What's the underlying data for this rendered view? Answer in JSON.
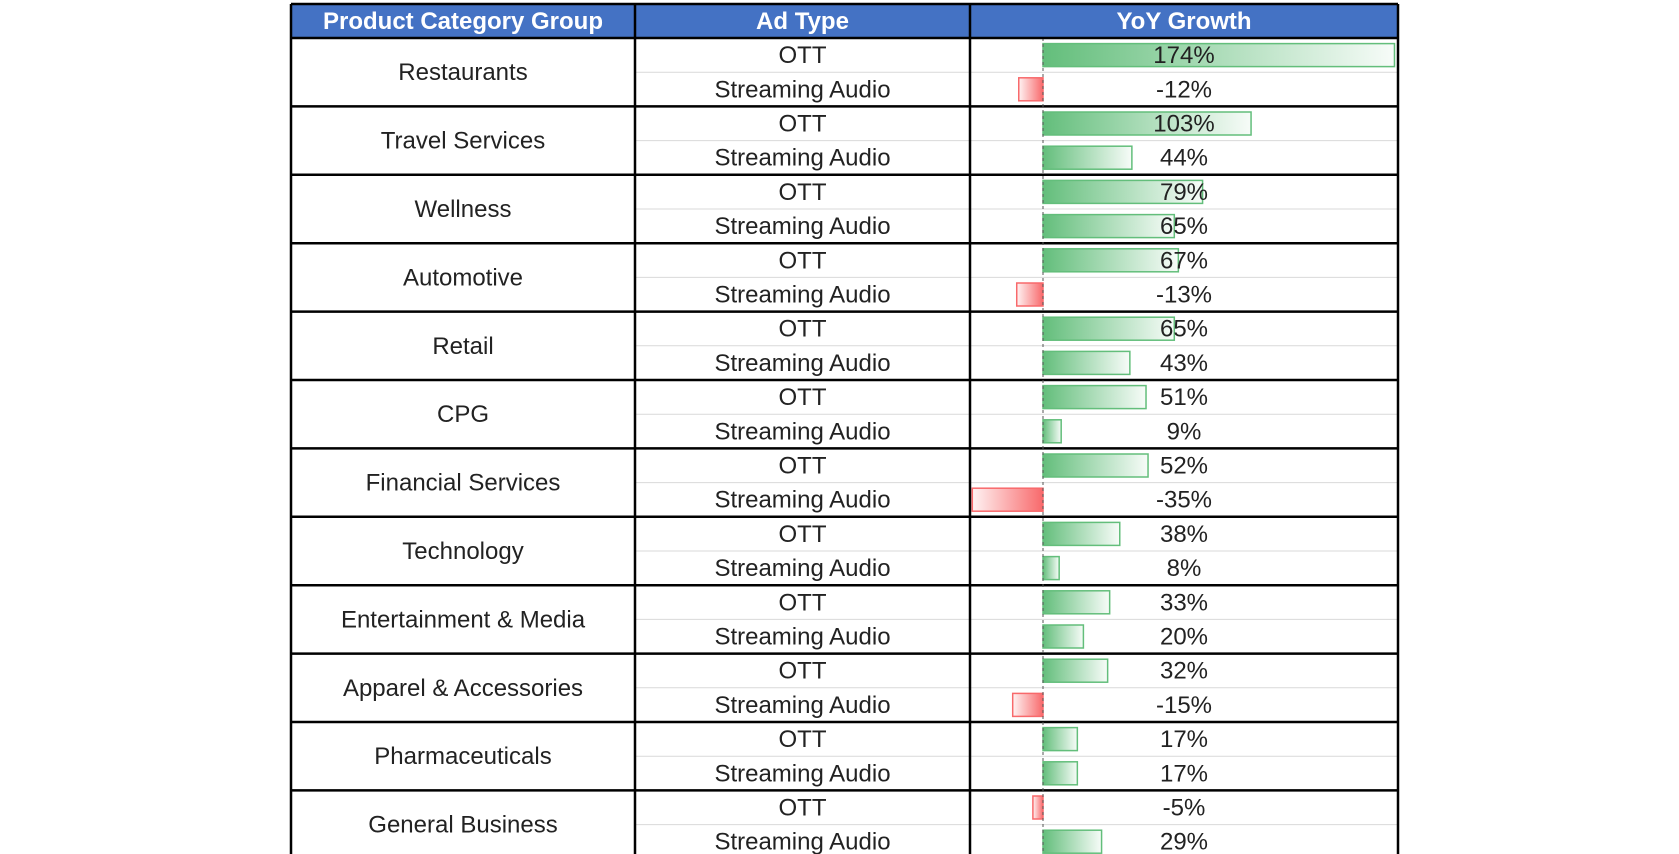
{
  "colors": {
    "header_bg": "#4472C4",
    "header_text": "#FFFFFF",
    "positive_bar": "#63BE7B",
    "negative_bar": "#F8696B",
    "border": "#000000"
  },
  "chart_data": {
    "type": "table",
    "columns": [
      "Product Category Group",
      "Ad Type",
      "YoY Growth"
    ],
    "value_unit": "%",
    "groups": [
      {
        "category": "Restaurants",
        "rows": [
          {
            "ad_type": "OTT",
            "growth": 174,
            "label": "174%"
          },
          {
            "ad_type": "Streaming Audio",
            "growth": -12,
            "label": "-12%"
          }
        ]
      },
      {
        "category": "Travel Services",
        "rows": [
          {
            "ad_type": "OTT",
            "growth": 103,
            "label": "103%"
          },
          {
            "ad_type": "Streaming Audio",
            "growth": 44,
            "label": "44%"
          }
        ]
      },
      {
        "category": "Wellness",
        "rows": [
          {
            "ad_type": "OTT",
            "growth": 79,
            "label": "79%"
          },
          {
            "ad_type": "Streaming Audio",
            "growth": 65,
            "label": "65%"
          }
        ]
      },
      {
        "category": "Automotive",
        "rows": [
          {
            "ad_type": "OTT",
            "growth": 67,
            "label": "67%"
          },
          {
            "ad_type": "Streaming Audio",
            "growth": -13,
            "label": "-13%"
          }
        ]
      },
      {
        "category": "Retail",
        "rows": [
          {
            "ad_type": "OTT",
            "growth": 65,
            "label": "65%"
          },
          {
            "ad_type": "Streaming Audio",
            "growth": 43,
            "label": "43%"
          }
        ]
      },
      {
        "category": "CPG",
        "rows": [
          {
            "ad_type": "OTT",
            "growth": 51,
            "label": "51%"
          },
          {
            "ad_type": "Streaming Audio",
            "growth": 9,
            "label": "9%"
          }
        ]
      },
      {
        "category": "Financial Services",
        "rows": [
          {
            "ad_type": "OTT",
            "growth": 52,
            "label": "52%"
          },
          {
            "ad_type": "Streaming Audio",
            "growth": -35,
            "label": "-35%"
          }
        ]
      },
      {
        "category": "Technology",
        "rows": [
          {
            "ad_type": "OTT",
            "growth": 38,
            "label": "38%"
          },
          {
            "ad_type": "Streaming Audio",
            "growth": 8,
            "label": "8%"
          }
        ]
      },
      {
        "category": "Entertainment & Media",
        "rows": [
          {
            "ad_type": "OTT",
            "growth": 33,
            "label": "33%"
          },
          {
            "ad_type": "Streaming Audio",
            "growth": 20,
            "label": "20%"
          }
        ]
      },
      {
        "category": "Apparel & Accessories",
        "rows": [
          {
            "ad_type": "OTT",
            "growth": 32,
            "label": "32%"
          },
          {
            "ad_type": "Streaming Audio",
            "growth": -15,
            "label": "-15%"
          }
        ]
      },
      {
        "category": "Pharmaceuticals",
        "rows": [
          {
            "ad_type": "OTT",
            "growth": 17,
            "label": "17%"
          },
          {
            "ad_type": "Streaming Audio",
            "growth": 17,
            "label": "17%"
          }
        ]
      },
      {
        "category": "General Business",
        "rows": [
          {
            "ad_type": "OTT",
            "growth": -5,
            "label": "-5%"
          },
          {
            "ad_type": "Streaming Audio",
            "growth": 29,
            "label": "29%"
          }
        ]
      }
    ]
  }
}
